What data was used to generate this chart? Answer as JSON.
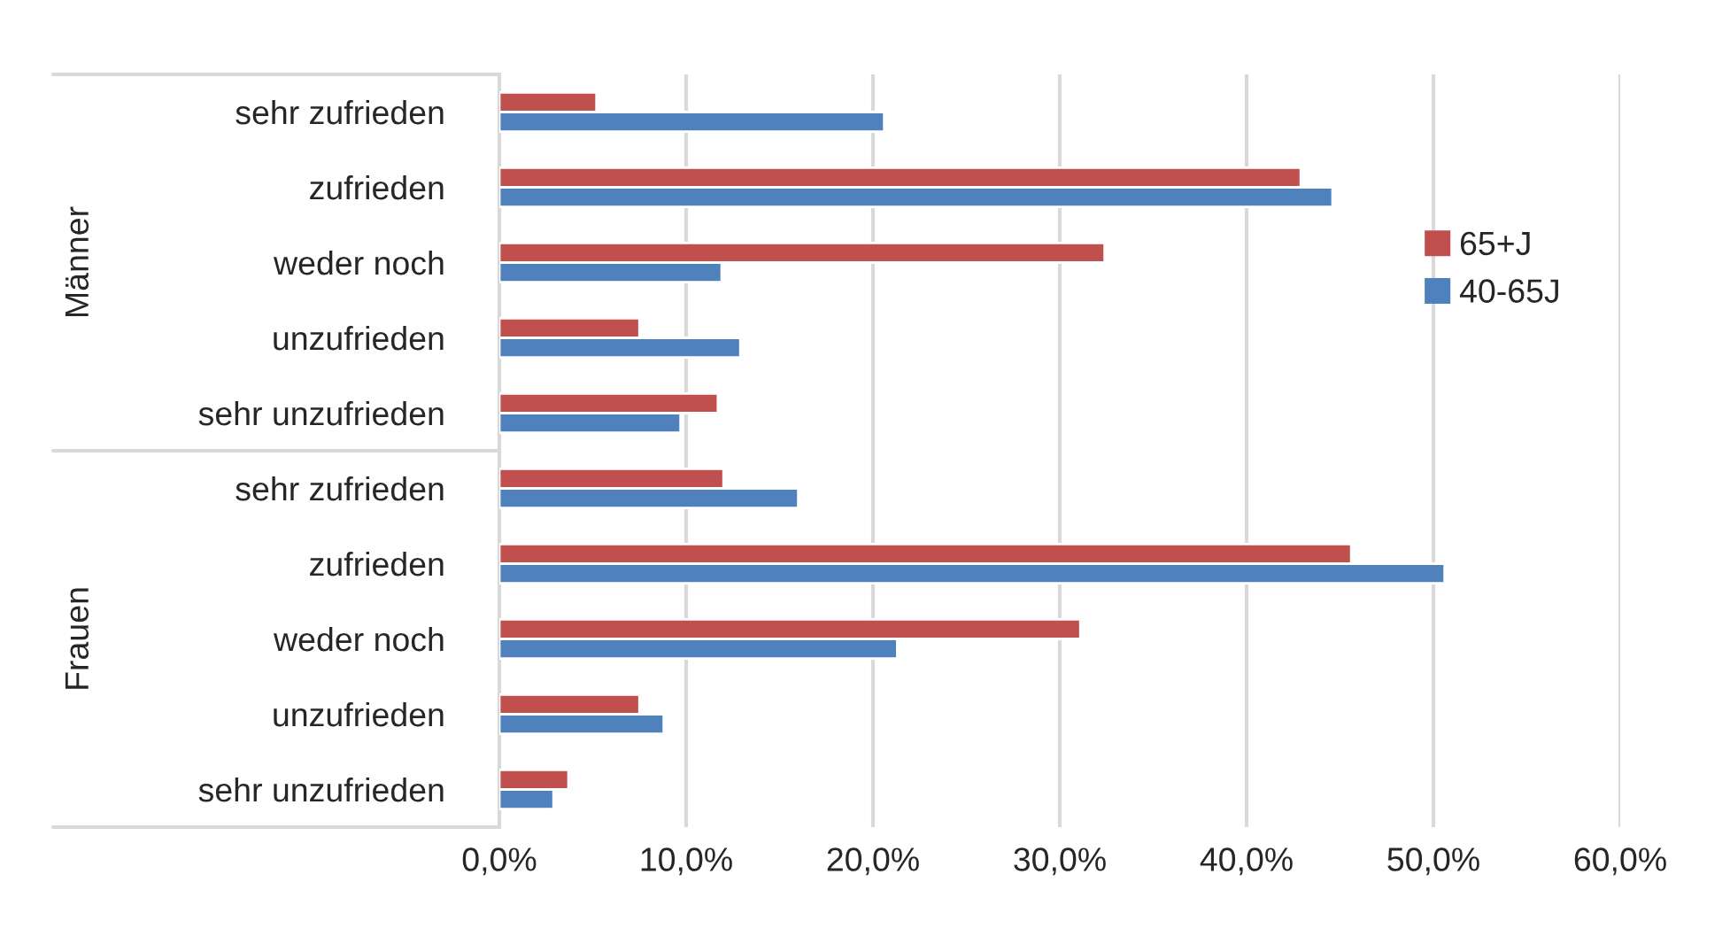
{
  "chart_data": {
    "type": "bar",
    "orientation": "horizontal",
    "categories": [
      "sehr zufrieden",
      "zufrieden",
      "weder noch",
      "unzufrieden",
      "sehr unzufrieden",
      "sehr zufrieden",
      "zufrieden",
      "weder noch",
      "unzufrieden",
      "sehr unzufrieden"
    ],
    "series": [
      {
        "name": "65+J",
        "color": "#c0504d",
        "values": [
          5.2,
          42.9,
          32.4,
          7.5,
          11.7,
          12.0,
          45.6,
          31.1,
          7.5,
          3.7
        ]
      },
      {
        "name": "40-65J",
        "color": "#4f81bd",
        "values": [
          20.6,
          44.6,
          11.9,
          12.9,
          9.7,
          16.0,
          50.6,
          21.3,
          8.8,
          2.9
        ]
      }
    ],
    "annotations": [
      "Männer",
      "Frauen"
    ],
    "xlim": [
      0,
      60
    ],
    "xticks": [
      {
        "value": 0,
        "label": "0,0%"
      },
      {
        "value": 10,
        "label": "10,0%"
      },
      {
        "value": 20,
        "label": "20,0%"
      },
      {
        "value": 30,
        "label": "30,0%"
      },
      {
        "value": 40,
        "label": "40,0%"
      },
      {
        "value": 50,
        "label": "50,0%"
      },
      {
        "value": 60,
        "label": "60,0%"
      }
    ],
    "grid": "x",
    "legend": "right"
  }
}
